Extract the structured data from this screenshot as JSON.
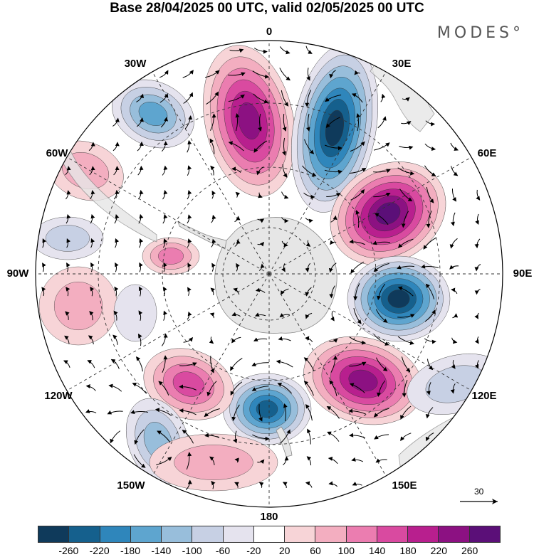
{
  "title": "Base 28/04/2025 00 UTC, valid 02/05/2025 00 UTC",
  "brand": "MODES°",
  "longitude_labels": {
    "top": "0",
    "bottom": "180",
    "left": "90W",
    "right": "90E",
    "ul1": "30W",
    "ul2": "60W",
    "ur1": "30E",
    "ur2": "60E",
    "ll1": "120W",
    "ll2": "150W",
    "lr1": "120E",
    "lr2": "150E"
  },
  "reference_vector": {
    "label": "30"
  },
  "colorbar": {
    "colors": [
      "#0f3a5b",
      "#15608d",
      "#2f86bb",
      "#5ea5cf",
      "#98bedb",
      "#c7d0e4",
      "#e5e3ee",
      "#ffffff",
      "#f7d4d7",
      "#f3aec0",
      "#eb7db0",
      "#d94aa0",
      "#b81f8e",
      "#8c1182",
      "#5b0f78"
    ],
    "ticks": [
      "-260",
      "-220",
      "-180",
      "-140",
      "-100",
      "-60",
      "-20",
      "20",
      "60",
      "100",
      "140",
      "180",
      "220",
      "260"
    ]
  },
  "map_data": {
    "projection": "south polar stereographic",
    "anomaly_centers": [
      {
        "name": "positive-anomaly-0E",
        "sign": "positive",
        "magnitude": "strong"
      },
      {
        "name": "negative-anomaly-30E",
        "sign": "negative",
        "magnitude": "strong"
      },
      {
        "name": "positive-anomaly-60E",
        "sign": "positive",
        "magnitude": "strong"
      },
      {
        "name": "negative-anomaly-90E",
        "sign": "negative",
        "magnitude": "strong"
      },
      {
        "name": "positive-anomaly-120E",
        "sign": "positive",
        "magnitude": "strong"
      },
      {
        "name": "negative-anomaly-160E",
        "sign": "negative",
        "magnitude": "strong"
      },
      {
        "name": "positive-anomaly-140W",
        "sign": "positive",
        "magnitude": "moderate"
      },
      {
        "name": "negative-anomaly-150W",
        "sign": "negative",
        "magnitude": "weak"
      },
      {
        "name": "negative-anomaly-30W",
        "sign": "negative",
        "magnitude": "moderate"
      },
      {
        "name": "positive-anomaly-60W",
        "sign": "positive",
        "magnitude": "weak"
      },
      {
        "name": "negative-anomaly-80W",
        "sign": "negative",
        "magnitude": "weak"
      },
      {
        "name": "positive-anomaly-100W",
        "sign": "positive",
        "magnitude": "weak"
      },
      {
        "name": "positive-anomaly-85W",
        "sign": "positive",
        "magnitude": "moderate"
      }
    ],
    "land_color": "#e6e6e6"
  }
}
